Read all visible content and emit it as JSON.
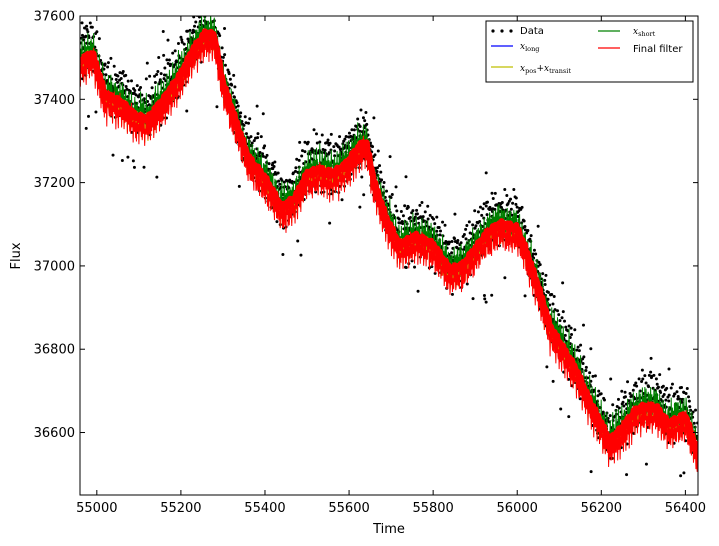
{
  "chart_data": {
    "type": "scatter",
    "title": "",
    "xlabel": "Time",
    "ylabel": "Flux",
    "xlim": [
      54960,
      56430
    ],
    "ylim": [
      36450,
      37600
    ],
    "xticks": [
      55000,
      55200,
      55400,
      55600,
      55800,
      56000,
      56200,
      56400
    ],
    "yticks": [
      36600,
      36800,
      37000,
      37200,
      37400,
      37600
    ],
    "grid": false,
    "legend": {
      "placement": "top-right",
      "columns": 2
    },
    "series": [
      {
        "name": "Data",
        "kind": "scatter",
        "color": "#000000"
      },
      {
        "name": "x_long",
        "kind": "line",
        "color": "#0000ff"
      },
      {
        "name": "x_pos + x_transit",
        "kind": "line",
        "color": "#bfbf00"
      },
      {
        "name": "x_short",
        "kind": "line",
        "color": "#008000"
      },
      {
        "name": "Final filter",
        "kind": "line",
        "color": "#ff0000"
      }
    ],
    "trend": {
      "x": [
        54960,
        54990,
        55020,
        55060,
        55090,
        55120,
        55160,
        55200,
        55230,
        55260,
        55280,
        55300,
        55330,
        55360,
        55400,
        55440,
        55470,
        55500,
        55530,
        55560,
        55590,
        55620,
        55640,
        55660,
        55690,
        55720,
        55760,
        55800,
        55840,
        55870,
        55900,
        55930,
        55960,
        56000,
        56020,
        56050,
        56080,
        56110,
        56140,
        56170,
        56200,
        56220,
        56250,
        56280,
        56300,
        56330,
        56360,
        56400,
        56430
      ],
      "y": [
        37490,
        37510,
        37410,
        37390,
        37360,
        37350,
        37400,
        37460,
        37520,
        37560,
        37550,
        37440,
        37350,
        37260,
        37210,
        37140,
        37160,
        37220,
        37230,
        37220,
        37240,
        37280,
        37300,
        37200,
        37110,
        37050,
        37070,
        37050,
        36990,
        37000,
        37040,
        37080,
        37100,
        37090,
        37040,
        36950,
        36850,
        36800,
        36750,
        36680,
        36620,
        36580,
        36610,
        36650,
        36660,
        36660,
        36620,
        36640,
        36550
      ]
    }
  },
  "legend_labels": {
    "data": "Data",
    "x_long": "x",
    "x_long_sub": "long",
    "x_pos": "x",
    "x_pos_sub": "pos",
    "plus": "+",
    "x_transit": "x",
    "x_transit_sub": "transit",
    "x_short": "x",
    "x_short_sub": "short",
    "final": "Final filter"
  }
}
